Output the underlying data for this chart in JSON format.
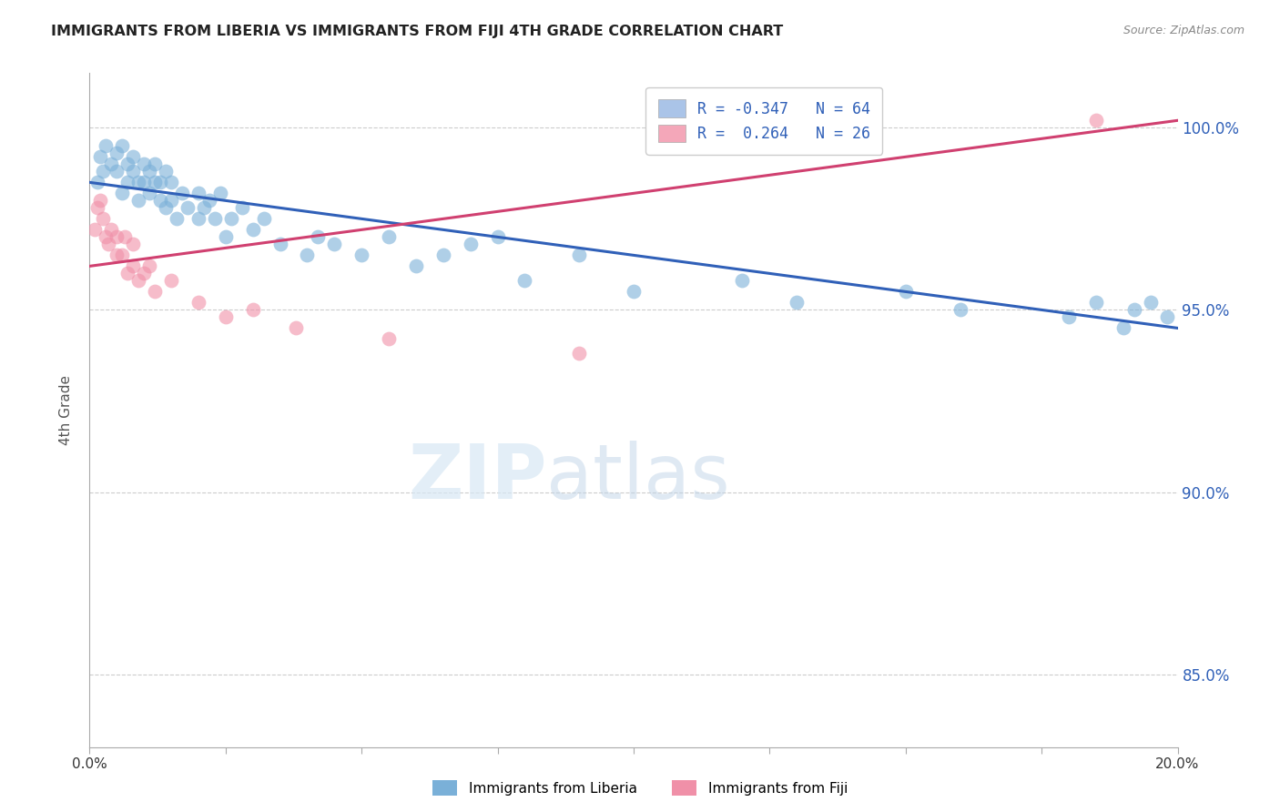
{
  "title": "IMMIGRANTS FROM LIBERIA VS IMMIGRANTS FROM FIJI 4TH GRADE CORRELATION CHART",
  "source_text": "Source: ZipAtlas.com",
  "ylabel_left": "4th Grade",
  "x_min": 0.0,
  "x_max": 20.0,
  "y_min": 83.0,
  "y_max": 101.5,
  "y_ticks": [
    85.0,
    90.0,
    95.0,
    100.0
  ],
  "y_tick_labels": [
    "85.0%",
    "90.0%",
    "95.0%",
    "100.0%"
  ],
  "watermark_zip": "ZIP",
  "watermark_atlas": "atlas",
  "legend_r1": "R = -0.347   N = 64",
  "legend_r2": "R =  0.264   N = 26",
  "legend_color1": "#aac4e8",
  "legend_color2": "#f4a7b9",
  "blue_color": "#7ab0d8",
  "pink_color": "#f090a8",
  "blue_line_color": "#3060b8",
  "pink_line_color": "#d04070",
  "grid_color": "#cccccc",
  "blue_scatter_x": [
    0.15,
    0.2,
    0.25,
    0.3,
    0.4,
    0.5,
    0.5,
    0.6,
    0.6,
    0.7,
    0.7,
    0.8,
    0.8,
    0.9,
    0.9,
    1.0,
    1.0,
    1.1,
    1.1,
    1.2,
    1.2,
    1.3,
    1.3,
    1.4,
    1.4,
    1.5,
    1.5,
    1.6,
    1.7,
    1.8,
    2.0,
    2.0,
    2.1,
    2.2,
    2.3,
    2.4,
    2.5,
    2.6,
    2.8,
    3.0,
    3.2,
    3.5,
    4.0,
    4.2,
    4.5,
    5.0,
    5.5,
    6.0,
    6.5,
    7.0,
    7.5,
    8.0,
    9.0,
    10.0,
    12.0,
    13.0,
    15.0,
    16.0,
    18.0,
    18.5,
    19.0,
    19.2,
    19.5,
    19.8
  ],
  "blue_scatter_y": [
    98.5,
    99.2,
    98.8,
    99.5,
    99.0,
    99.3,
    98.8,
    99.5,
    98.2,
    99.0,
    98.5,
    98.8,
    99.2,
    98.5,
    98.0,
    98.5,
    99.0,
    98.8,
    98.2,
    98.5,
    99.0,
    98.0,
    98.5,
    98.8,
    97.8,
    98.5,
    98.0,
    97.5,
    98.2,
    97.8,
    97.5,
    98.2,
    97.8,
    98.0,
    97.5,
    98.2,
    97.0,
    97.5,
    97.8,
    97.2,
    97.5,
    96.8,
    96.5,
    97.0,
    96.8,
    96.5,
    97.0,
    96.2,
    96.5,
    96.8,
    97.0,
    95.8,
    96.5,
    95.5,
    95.8,
    95.2,
    95.5,
    95.0,
    94.8,
    95.2,
    94.5,
    95.0,
    95.2,
    94.8
  ],
  "pink_scatter_x": [
    0.1,
    0.15,
    0.2,
    0.25,
    0.3,
    0.35,
    0.4,
    0.5,
    0.5,
    0.6,
    0.65,
    0.7,
    0.8,
    0.8,
    0.9,
    1.0,
    1.1,
    1.2,
    1.5,
    2.0,
    2.5,
    3.0,
    3.8,
    5.5,
    9.0,
    18.5
  ],
  "pink_scatter_y": [
    97.2,
    97.8,
    98.0,
    97.5,
    97.0,
    96.8,
    97.2,
    96.5,
    97.0,
    96.5,
    97.0,
    96.0,
    96.2,
    96.8,
    95.8,
    96.0,
    96.2,
    95.5,
    95.8,
    95.2,
    94.8,
    95.0,
    94.5,
    94.2,
    93.8,
    100.2
  ],
  "blue_line_x": [
    0.0,
    20.0
  ],
  "blue_line_y": [
    98.5,
    94.5
  ],
  "pink_line_x": [
    0.0,
    20.0
  ],
  "pink_line_y": [
    96.2,
    100.2
  ]
}
